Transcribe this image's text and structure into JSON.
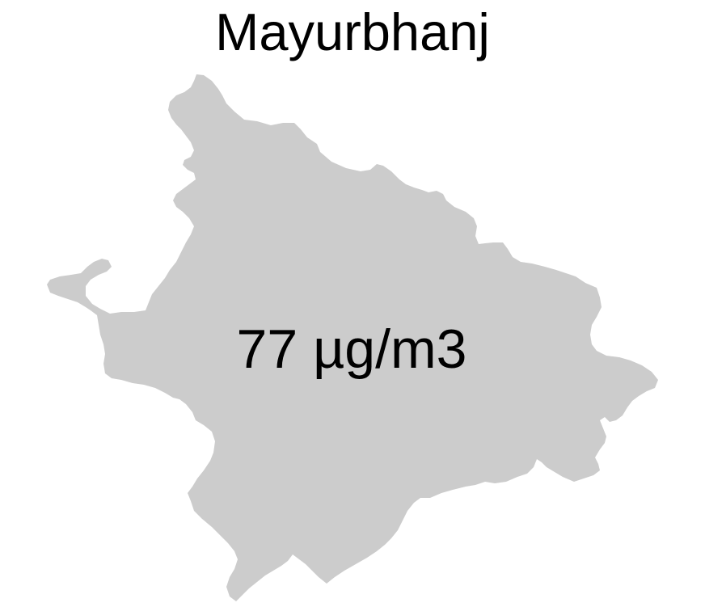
{
  "map": {
    "region_name": "Mayurbhanj",
    "value_label": "77 µg/m3",
    "region_fill": "#cccccc",
    "background": "#ffffff",
    "text_color": "#000000"
  }
}
